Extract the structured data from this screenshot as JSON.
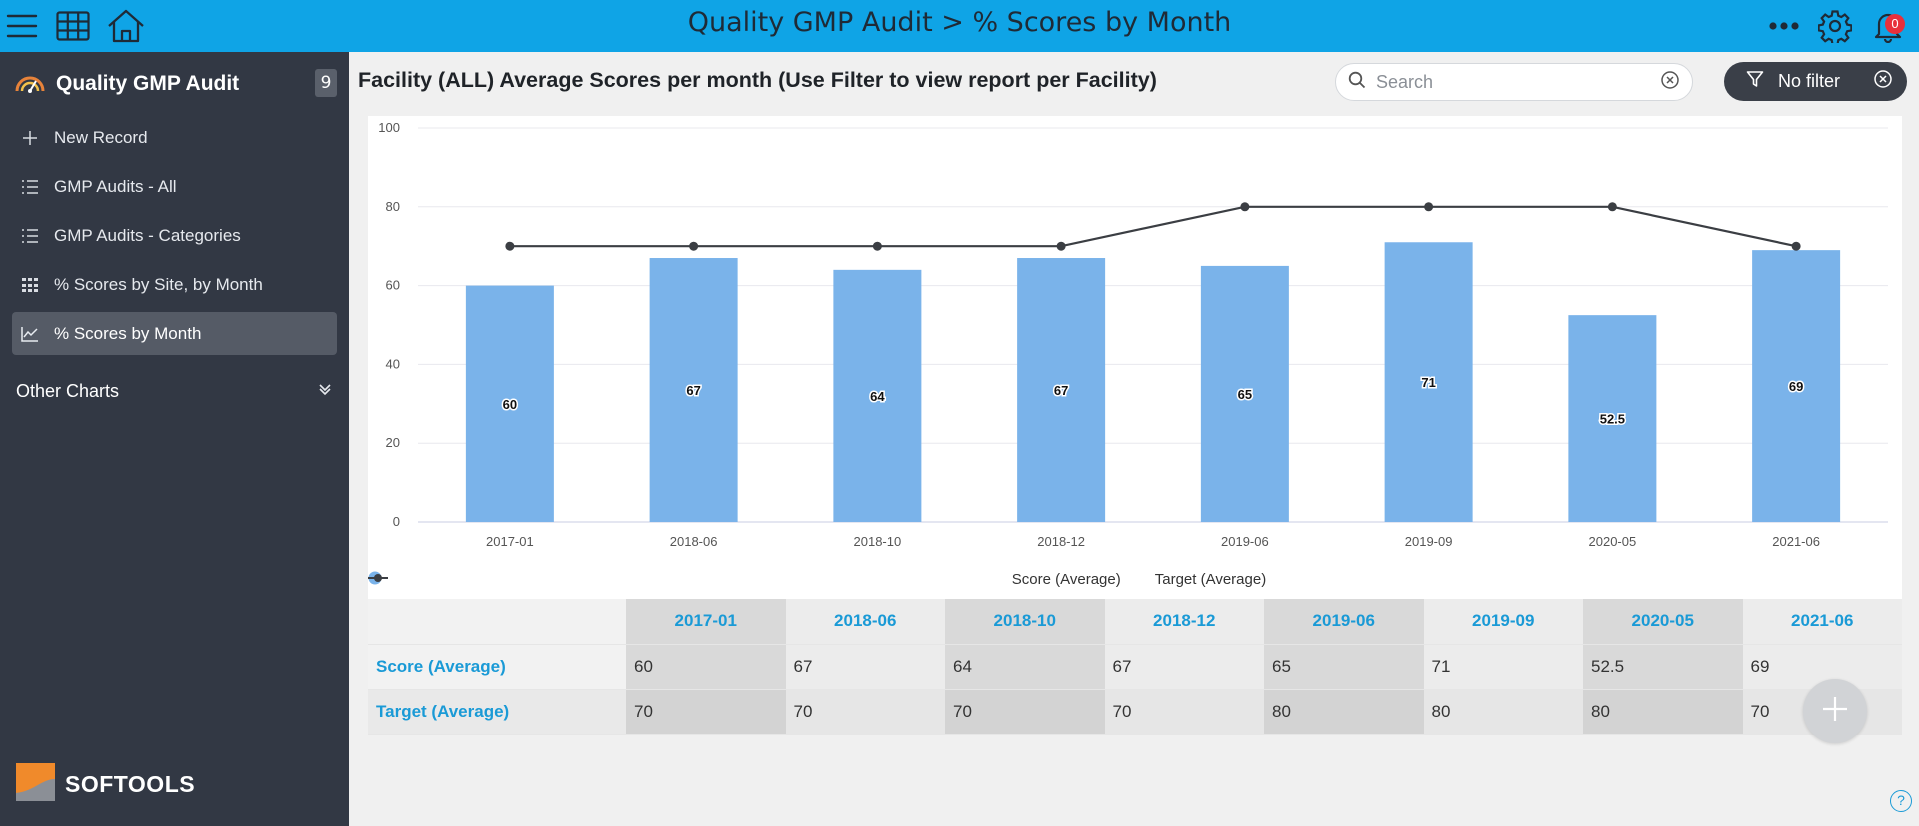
{
  "header": {
    "title": "Quality GMP Audit > % Scores by Month",
    "notifications_count": "0"
  },
  "sidebar": {
    "app_name": "Quality GMP Audit",
    "record_count": "9",
    "items": [
      {
        "label": "New Record",
        "icon": "plus-icon"
      },
      {
        "label": "GMP Audits - All",
        "icon": "list-icon"
      },
      {
        "label": "GMP Audits - Categories",
        "icon": "list-icon"
      },
      {
        "label": "% Scores by Site, by Month",
        "icon": "grid-table-icon"
      },
      {
        "label": "% Scores by Month",
        "icon": "line-chart-icon",
        "active": true
      }
    ],
    "other_charts": "Other Charts",
    "brand": "SOFTOOLS"
  },
  "main": {
    "title": "Facility (ALL) Average Scores per month (Use Filter to view report per Facility)",
    "search_placeholder": "Search",
    "filter_label": "No filter"
  },
  "colors": {
    "header": "#0fa4e6",
    "sidebar": "#323844",
    "bar": "#7ab3ea",
    "line": "#3b3e43",
    "accent": "#1a9ad6"
  },
  "chart_data": {
    "type": "bar",
    "categories": [
      "2017-01",
      "2018-06",
      "2018-10",
      "2018-12",
      "2019-06",
      "2019-09",
      "2020-05",
      "2021-06"
    ],
    "series": [
      {
        "name": "Score (Average)",
        "type": "bar",
        "values": [
          60,
          67,
          64,
          67,
          65,
          71,
          52.5,
          69
        ]
      },
      {
        "name": "Target (Average)",
        "type": "line",
        "values": [
          70,
          70,
          70,
          70,
          80,
          80,
          80,
          70
        ]
      }
    ],
    "yticks": [
      0,
      20,
      40,
      60,
      80,
      100
    ],
    "ylim": [
      0,
      100
    ],
    "grid": true,
    "legend_position": "bottom"
  },
  "table": {
    "rows": [
      {
        "label": "Score (Average)",
        "values": [
          "60",
          "67",
          "64",
          "67",
          "65",
          "71",
          "52.5",
          "69"
        ]
      },
      {
        "label": "Target (Average)",
        "values": [
          "70",
          "70",
          "70",
          "70",
          "80",
          "80",
          "80",
          "70"
        ]
      }
    ]
  }
}
